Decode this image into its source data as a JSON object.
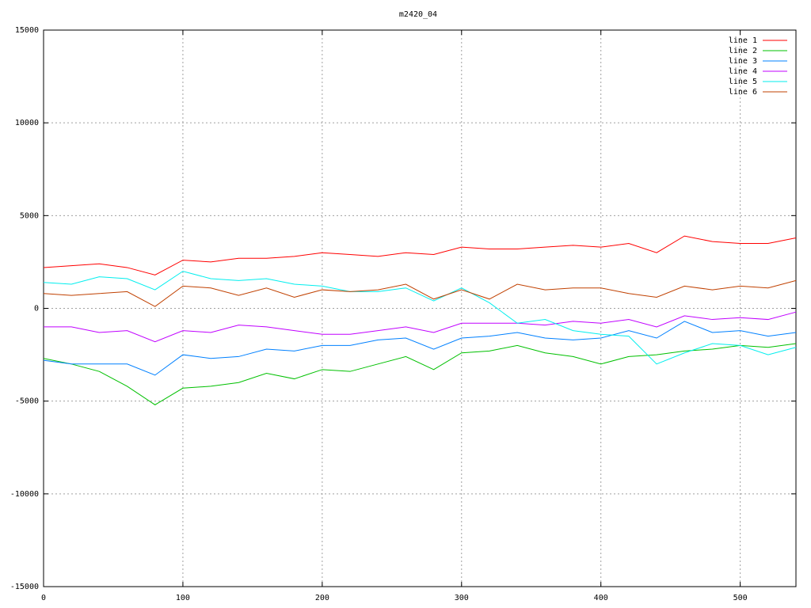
{
  "chart_data": {
    "type": "line",
    "title": "m2420_04",
    "x": [
      0,
      20,
      40,
      60,
      80,
      100,
      120,
      140,
      160,
      180,
      200,
      220,
      240,
      260,
      280,
      300,
      320,
      340,
      360,
      380,
      400,
      420,
      440,
      460,
      480,
      500,
      520,
      540
    ],
    "series": [
      {
        "name": "line 1",
        "color": "#ff0000",
        "values": [
          2200,
          2300,
          2400,
          2200,
          1800,
          2600,
          2500,
          2700,
          2700,
          2800,
          3000,
          2900,
          2800,
          3000,
          2900,
          3300,
          3200,
          3200,
          3300,
          3400,
          3300,
          3500,
          3000,
          3900,
          3600,
          3500,
          3500,
          3800
        ]
      },
      {
        "name": "line 2",
        "color": "#00c000",
        "values": [
          -2700,
          -3000,
          -3400,
          -4200,
          -5200,
          -4300,
          -4200,
          -4000,
          -3500,
          -3800,
          -3300,
          -3400,
          -3000,
          -2600,
          -3300,
          -2400,
          -2300,
          -2000,
          -2400,
          -2600,
          -3000,
          -2600,
          -2500,
          -2300,
          -2200,
          -2000,
          -2100,
          -1900
        ]
      },
      {
        "name": "line 3",
        "color": "#0080ff",
        "values": [
          -2800,
          -3000,
          -3000,
          -3000,
          -3600,
          -2500,
          -2700,
          -2600,
          -2200,
          -2300,
          -2000,
          -2000,
          -1700,
          -1600,
          -2200,
          -1600,
          -1500,
          -1300,
          -1600,
          -1700,
          -1600,
          -1200,
          -1600,
          -700,
          -1300,
          -1200,
          -1500,
          -1300
        ]
      },
      {
        "name": "line 4",
        "color": "#c000ff",
        "values": [
          -1000,
          -1000,
          -1300,
          -1200,
          -1800,
          -1200,
          -1300,
          -900,
          -1000,
          -1200,
          -1400,
          -1400,
          -1200,
          -1000,
          -1300,
          -800,
          -800,
          -800,
          -900,
          -700,
          -800,
          -600,
          -1000,
          -400,
          -600,
          -500,
          -600,
          -200
        ]
      },
      {
        "name": "line 5",
        "color": "#00eeee",
        "values": [
          1400,
          1300,
          1700,
          1600,
          1000,
          2000,
          1600,
          1500,
          1600,
          1300,
          1200,
          900,
          900,
          1100,
          400,
          1100,
          300,
          -800,
          -600,
          -1200,
          -1400,
          -1500,
          -3000,
          -2400,
          -1900,
          -2000,
          -2500,
          -2100
        ]
      },
      {
        "name": "line 6",
        "color": "#c04000",
        "values": [
          800,
          700,
          800,
          900,
          100,
          1200,
          1100,
          700,
          1100,
          600,
          1000,
          900,
          1000,
          1300,
          500,
          1000,
          500,
          1300,
          1000,
          1100,
          1100,
          800,
          600,
          1200,
          1000,
          1200,
          1100,
          1500
        ]
      }
    ],
    "xlim": [
      0,
      540
    ],
    "xticks": [
      0,
      100,
      200,
      300,
      400,
      500
    ],
    "ylim": [
      -15000,
      15000
    ],
    "yticks": [
      -15000,
      -10000,
      -5000,
      0,
      5000,
      10000,
      15000
    ],
    "grid": true,
    "legend": "top-right"
  }
}
